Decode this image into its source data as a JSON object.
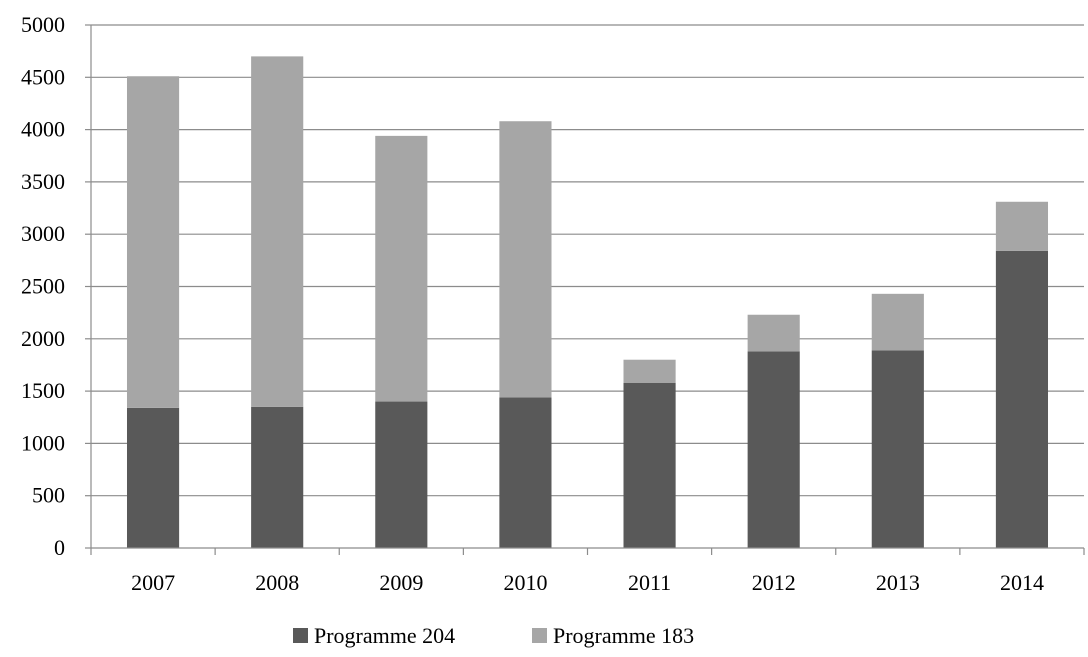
{
  "chart_data": {
    "type": "bar",
    "stacked": true,
    "categories": [
      "2007",
      "2008",
      "2009",
      "2010",
      "2011",
      "2012",
      "2013",
      "2014"
    ],
    "series": [
      {
        "name": "Programme 204",
        "color": "#595959",
        "values": [
          1340,
          1350,
          1400,
          1440,
          1580,
          1880,
          1890,
          2840
        ]
      },
      {
        "name": "Programme 183",
        "color": "#a6a6a6",
        "values": [
          3170,
          3350,
          2540,
          2640,
          220,
          350,
          540,
          470
        ]
      }
    ],
    "title": "",
    "xlabel": "",
    "ylabel": "",
    "ylim": [
      0,
      5000
    ],
    "yticks": [
      0,
      500,
      1000,
      1500,
      2000,
      2500,
      3000,
      3500,
      4000,
      4500,
      5000
    ],
    "ytick_labels": [
      "0",
      "500",
      "1000",
      "1500",
      "2000",
      "2500",
      "3000",
      "3500",
      "4000",
      "4500",
      "5000"
    ],
    "grid": true,
    "legend_position": "bottom-center"
  }
}
